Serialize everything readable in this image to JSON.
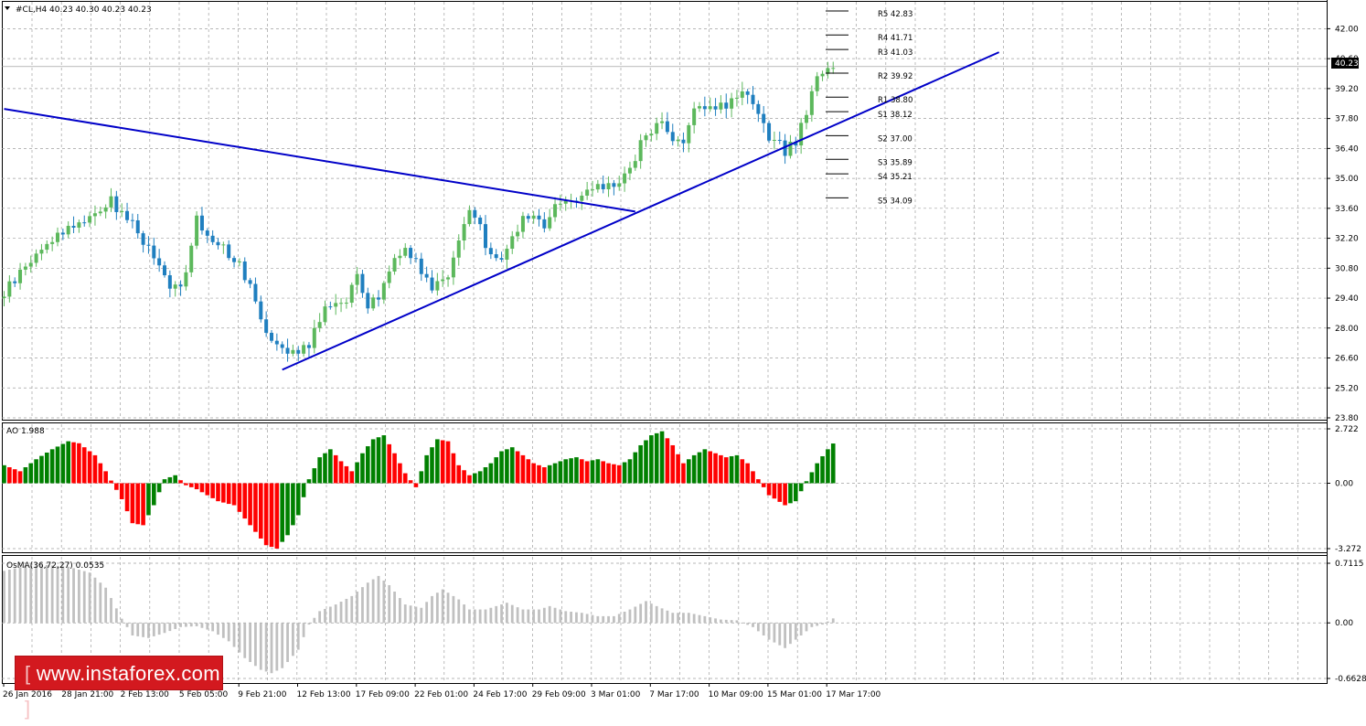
{
  "header": {
    "symbol_text": "#CL,H4  40.23 40.30 40.23 40.23",
    "current_price": "40.23"
  },
  "watermark": {
    "text": "www.instaforex.com"
  },
  "colors": {
    "bull": "#008000",
    "bear": "#ff0000",
    "candle_up": "#5cb85c",
    "candle_down": "#1f7fbf",
    "trendline": "#0000c8",
    "osma": "#c0c0c0",
    "grid": "#a0a0a0"
  },
  "chart_data": [
    {
      "type": "candlestick",
      "panel": "price",
      "title": "#CL,H4  40.23 40.30 40.23 40.23",
      "ylim": [
        23.8,
        42.83
      ],
      "y_ticks": [
        "42.00",
        "40.60",
        "39.20",
        "37.80",
        "36.40",
        "35.00",
        "33.60",
        "32.20",
        "30.80",
        "29.40",
        "28.00",
        "26.60",
        "25.20",
        "23.80"
      ],
      "x_ticks": [
        "26 Jan 2016",
        "28 Jan 21:00",
        "2 Feb 13:00",
        "5 Feb 05:00",
        "9 Feb 21:00",
        "12 Feb 13:00",
        "17 Feb 09:00",
        "22 Feb 01:00",
        "24 Feb 17:00",
        "29 Feb 09:00",
        "3 Mar 01:00",
        "7 Mar 17:00",
        "10 Mar 09:00",
        "15 Mar 01:00",
        "17 Mar 17:00"
      ],
      "close_path": [
        [
          0,
          29.6
        ],
        [
          5,
          31.2
        ],
        [
          10,
          32.4
        ],
        [
          15,
          33.1
        ],
        [
          20,
          33.9
        ],
        [
          24,
          32.9
        ],
        [
          28,
          31.3
        ],
        [
          31,
          29.8
        ],
        [
          34,
          30.4
        ],
        [
          36,
          33.0
        ],
        [
          38,
          32.4
        ],
        [
          41,
          31.8
        ],
        [
          44,
          30.9
        ],
        [
          46,
          30.1
        ],
        [
          49,
          27.9
        ],
        [
          52,
          27.2
        ],
        [
          55,
          26.8
        ],
        [
          57,
          27.3
        ],
        [
          59,
          28.5
        ],
        [
          62,
          29.3
        ],
        [
          64,
          29.4
        ],
        [
          66,
          30.3
        ],
        [
          68,
          29.0
        ],
        [
          70,
          29.4
        ],
        [
          72,
          30.9
        ],
        [
          75,
          31.8
        ],
        [
          78,
          30.8
        ],
        [
          80,
          29.9
        ],
        [
          83,
          30.6
        ],
        [
          85,
          32.1
        ],
        [
          87,
          33.4
        ],
        [
          89,
          32.6
        ],
        [
          91,
          31.4
        ],
        [
          93,
          31.1
        ],
        [
          95,
          32.5
        ],
        [
          97,
          33.0
        ],
        [
          99,
          33.3
        ],
        [
          101,
          32.8
        ],
        [
          103,
          33.7
        ],
        [
          105,
          34.2
        ],
        [
          107,
          33.9
        ],
        [
          109,
          34.3
        ],
        [
          111,
          34.5
        ],
        [
          113,
          34.7
        ],
        [
          115,
          34.9
        ],
        [
          117,
          35.3
        ],
        [
          119,
          36.6
        ],
        [
          121,
          37.3
        ],
        [
          123,
          37.6
        ],
        [
          125,
          36.7
        ],
        [
          127,
          36.9
        ],
        [
          129,
          38.3
        ],
        [
          131,
          38.0
        ],
        [
          133,
          38.4
        ],
        [
          135,
          38.5
        ],
        [
          137,
          38.9
        ],
        [
          139,
          38.7
        ],
        [
          141,
          37.9
        ],
        [
          143,
          36.8
        ],
        [
          145,
          36.5
        ],
        [
          146,
          36.3
        ],
        [
          148,
          36.7
        ],
        [
          150,
          38.2
        ],
        [
          152,
          39.6
        ],
        [
          154,
          40.1
        ],
        [
          155,
          40.23
        ]
      ],
      "trendlines": [
        {
          "name": "resistance",
          "from": [
            0,
            38.25
          ],
          "to": [
            118,
            33.45
          ]
        },
        {
          "name": "support",
          "from": [
            52,
            26.05
          ],
          "to": [
            186,
            40.9
          ]
        }
      ],
      "pivot_levels": [
        {
          "label": "R5",
          "value": "42.83"
        },
        {
          "label": "R4",
          "value": "41.71"
        },
        {
          "label": "R3",
          "value": "41.03"
        },
        {
          "label": "R2",
          "value": "39.92"
        },
        {
          "label": "R1",
          "value": "38.80"
        },
        {
          "label": "S1",
          "value": "38.12"
        },
        {
          "label": "S2",
          "value": "37.00"
        },
        {
          "label": "S3",
          "value": "35.89"
        },
        {
          "label": "S4",
          "value": "35.21"
        },
        {
          "label": "S5",
          "value": "34.09"
        }
      ]
    },
    {
      "type": "bar",
      "panel": "ao",
      "title": "AO 1.988",
      "ylim": [
        -3.272,
        2.722
      ],
      "y_ticks": [
        "2.722",
        "0.00",
        "-3.272"
      ],
      "series_path": [
        [
          0,
          0.9
        ],
        [
          3,
          0.6
        ],
        [
          6,
          1.2
        ],
        [
          9,
          1.7
        ],
        [
          12,
          2.1
        ],
        [
          14,
          2.0
        ],
        [
          17,
          1.4
        ],
        [
          19,
          0.6
        ],
        [
          22,
          -0.8
        ],
        [
          24,
          -2.0
        ],
        [
          26,
          -2.1
        ],
        [
          28,
          -1.1
        ],
        [
          30,
          0.2
        ],
        [
          32,
          0.4
        ],
        [
          34,
          -0.1
        ],
        [
          36,
          -0.3
        ],
        [
          38,
          -0.6
        ],
        [
          40,
          -0.9
        ],
        [
          43,
          -1.1
        ],
        [
          46,
          -2.1
        ],
        [
          49,
          -3.1
        ],
        [
          51,
          -3.27
        ],
        [
          53,
          -2.6
        ],
        [
          55,
          -1.6
        ],
        [
          57,
          0.2
        ],
        [
          59,
          1.3
        ],
        [
          61,
          1.7
        ],
        [
          63,
          1.1
        ],
        [
          65,
          0.6
        ],
        [
          67,
          1.5
        ],
        [
          69,
          2.2
        ],
        [
          71,
          2.4
        ],
        [
          73,
          1.5
        ],
        [
          75,
          0.5
        ],
        [
          77,
          -0.2
        ],
        [
          79,
          1.4
        ],
        [
          81,
          2.2
        ],
        [
          83,
          2.1
        ],
        [
          85,
          0.9
        ],
        [
          87,
          0.4
        ],
        [
          89,
          0.6
        ],
        [
          91,
          1.0
        ],
        [
          93,
          1.6
        ],
        [
          95,
          1.8
        ],
        [
          97,
          1.4
        ],
        [
          99,
          1.0
        ],
        [
          101,
          0.8
        ],
        [
          103,
          1.0
        ],
        [
          105,
          1.2
        ],
        [
          107,
          1.3
        ],
        [
          109,
          1.1
        ],
        [
          111,
          1.2
        ],
        [
          113,
          1.0
        ],
        [
          115,
          0.9
        ],
        [
          117,
          1.2
        ],
        [
          119,
          1.9
        ],
        [
          121,
          2.4
        ],
        [
          123,
          2.6
        ],
        [
          125,
          1.9
        ],
        [
          127,
          1.0
        ],
        [
          129,
          1.4
        ],
        [
          131,
          1.7
        ],
        [
          133,
          1.5
        ],
        [
          135,
          1.3
        ],
        [
          137,
          1.4
        ],
        [
          139,
          1.0
        ],
        [
          141,
          0.2
        ],
        [
          143,
          -0.6
        ],
        [
          146,
          -1.1
        ],
        [
          148,
          -0.9
        ],
        [
          150,
          0.1
        ],
        [
          152,
          1.0
        ],
        [
          154,
          1.7
        ],
        [
          155,
          1.988
        ]
      ]
    },
    {
      "type": "bar",
      "panel": "osma",
      "title": "OsMA(36,72,27) 0.0535",
      "ylim": [
        -0.6628,
        0.7115
      ],
      "y_ticks": [
        "0.7115",
        "0.00",
        "-0.6628"
      ],
      "series_path": [
        [
          0,
          0.62
        ],
        [
          4,
          0.68
        ],
        [
          8,
          0.69
        ],
        [
          12,
          0.67
        ],
        [
          16,
          0.6
        ],
        [
          19,
          0.42
        ],
        [
          22,
          0.05
        ],
        [
          24,
          -0.15
        ],
        [
          27,
          -0.18
        ],
        [
          30,
          -0.12
        ],
        [
          33,
          -0.05
        ],
        [
          36,
          -0.04
        ],
        [
          39,
          -0.1
        ],
        [
          42,
          -0.22
        ],
        [
          45,
          -0.42
        ],
        [
          48,
          -0.56
        ],
        [
          50,
          -0.6
        ],
        [
          52,
          -0.54
        ],
        [
          55,
          -0.32
        ],
        [
          57,
          -0.02
        ],
        [
          59,
          0.14
        ],
        [
          62,
          0.22
        ],
        [
          65,
          0.32
        ],
        [
          68,
          0.48
        ],
        [
          70,
          0.56
        ],
        [
          72,
          0.45
        ],
        [
          75,
          0.22
        ],
        [
          78,
          0.18
        ],
        [
          80,
          0.32
        ],
        [
          82,
          0.4
        ],
        [
          85,
          0.28
        ],
        [
          87,
          0.16
        ],
        [
          90,
          0.16
        ],
        [
          92,
          0.2
        ],
        [
          94,
          0.24
        ],
        [
          97,
          0.16
        ],
        [
          100,
          0.16
        ],
        [
          102,
          0.2
        ],
        [
          105,
          0.14
        ],
        [
          108,
          0.12
        ],
        [
          111,
          0.08
        ],
        [
          114,
          0.08
        ],
        [
          117,
          0.16
        ],
        [
          120,
          0.26
        ],
        [
          122,
          0.2
        ],
        [
          125,
          0.12
        ],
        [
          128,
          0.12
        ],
        [
          131,
          0.08
        ],
        [
          134,
          0.04
        ],
        [
          137,
          0.03
        ],
        [
          140,
          -0.05
        ],
        [
          143,
          -0.2
        ],
        [
          146,
          -0.3
        ],
        [
          148,
          -0.2
        ],
        [
          151,
          -0.05
        ],
        [
          153,
          -0.02
        ],
        [
          155,
          0.0535
        ]
      ]
    }
  ]
}
